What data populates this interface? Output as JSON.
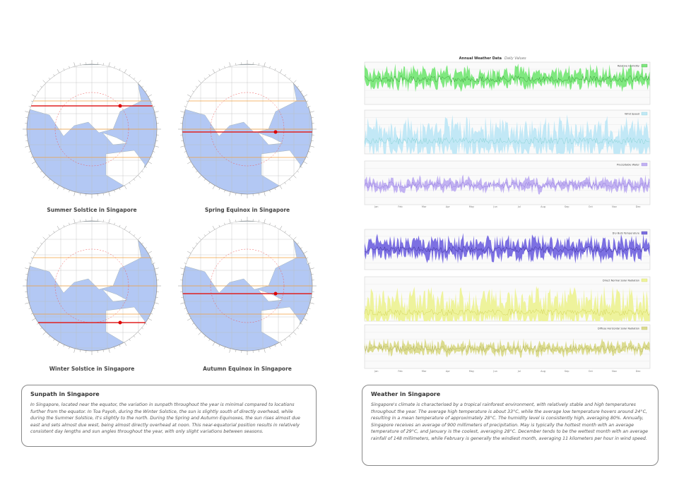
{
  "globes": [
    {
      "caption": "Summer Solstice in Singapore"
    },
    {
      "caption": "Spring Equinox in Singapore"
    },
    {
      "caption": "Winter Solstice in Singapore"
    },
    {
      "caption": "Autumn Equinox in Singapore"
    }
  ],
  "weather_chart": {
    "title": "Annual Weather Data",
    "subtitle": "Daily Values",
    "panels": [
      "Relative Humidity",
      "Wind Speed",
      "Precipitable Water",
      "Dry Bulb Temperature",
      "Direct Normal Solar Radiation",
      "Diffuse Horizontal Solar Radiation"
    ],
    "months": [
      "Jan",
      "Feb",
      "Mar",
      "Apr",
      "May",
      "Jun",
      "Jul",
      "Aug",
      "Sep",
      "Oct",
      "Nov",
      "Dec"
    ]
  },
  "sunpath_box": {
    "title": "Sunpath in Singapore",
    "text": "In Singapore, located near the equator, the variation in sunpath throughout the year is minimal compared to locations further from the equator. In Toa Payoh, during the Winter Solstice, the sun is slightly south of directly overhead, while during the Summer Solstice, it's slightly to the north. During the Spring and Autumn Equinoxes, the sun rises almost due east and sets almost due west, being almost directly overhead at noon. This near-equatorial position results in relatively consistent day lengths and sun angles throughout the year, with only slight variations between seasons."
  },
  "weather_box": {
    "title": "Weather in Singapore",
    "text": "Singapore's climate is characterised by a tropical rainforest environment, with relatively stable and high temperatures throughout the year. The average high temperature is about 33°C, while the average low temperature hovers around 24°C, resulting in a mean temperature of approximately 28°C. The humidity level is consistently high, averaging 80%. Annually, Singapore receives an average of 900 millimeters of precipitation. May is typically the hottest month with an average temperature of 29°C, and January is the coolest, averaging 28°C. December tends to be the wettest month with an average rainfall of 148 millimeters, while February is generally the windiest month, averaging 11 kilometers per hour in wind speed."
  }
}
